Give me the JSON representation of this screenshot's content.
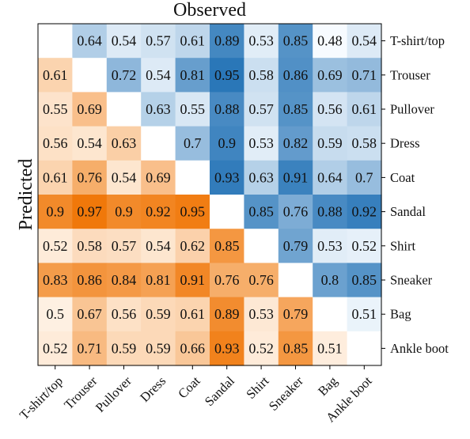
{
  "chart_data": {
    "type": "heatmap",
    "title": "Observed",
    "ylabel": "Predicted",
    "xlabel": "",
    "x_categories": [
      "T-shirt/top",
      "Trouser",
      "Pullover",
      "Dress",
      "Coat",
      "Sandal",
      "Shirt",
      "Sneaker",
      "Bag",
      "Ankle boot"
    ],
    "y_categories": [
      "T-shirt/top",
      "Trouser",
      "Pullover",
      "Dress",
      "Coat",
      "Sandal",
      "Shirt",
      "Sneaker",
      "Bag",
      "Ankle boot"
    ],
    "upper_triangle_colormap": "blues",
    "lower_triangle_colormap": "oranges",
    "values": [
      [
        null,
        "0.64",
        "0.54",
        "0.57",
        "0.61",
        "0.89",
        "0.53",
        "0.85",
        "0.48",
        "0.54"
      ],
      [
        "0.61",
        null,
        "0.72",
        "0.54",
        "0.81",
        "0.95",
        "0.58",
        "0.86",
        "0.69",
        "0.71"
      ],
      [
        "0.55",
        "0.69",
        null,
        "0.63",
        "0.55",
        "0.88",
        "0.57",
        "0.85",
        "0.56",
        "0.61"
      ],
      [
        "0.56",
        "0.54",
        "0.63",
        null,
        "0.7",
        "0.9",
        "0.53",
        "0.82",
        "0.59",
        "0.58"
      ],
      [
        "0.61",
        "0.76",
        "0.54",
        "0.69",
        null,
        "0.93",
        "0.63",
        "0.91",
        "0.64",
        "0.7"
      ],
      [
        "0.9",
        "0.97",
        "0.9",
        "0.92",
        "0.95",
        null,
        "0.85",
        "0.76",
        "0.88",
        "0.92"
      ],
      [
        "0.52",
        "0.58",
        "0.57",
        "0.54",
        "0.62",
        "0.85",
        null,
        "0.79",
        "0.53",
        "0.52"
      ],
      [
        "0.83",
        "0.86",
        "0.84",
        "0.81",
        "0.91",
        "0.76",
        "0.76",
        null,
        "0.8",
        "0.85"
      ],
      [
        "0.5",
        "0.67",
        "0.56",
        "0.59",
        "0.61",
        "0.89",
        "0.53",
        "0.79",
        null,
        "0.51"
      ],
      [
        "0.52",
        "0.71",
        "0.59",
        "0.59",
        "0.66",
        "0.93",
        "0.52",
        "0.85",
        "0.51",
        null
      ]
    ],
    "color_range": [
      0.48,
      0.97
    ],
    "grid": false,
    "colors": {
      "upper_light": "#f7fbff",
      "upper_dark": "#2171b5",
      "lower_light": "#fff5eb",
      "lower_dark": "#f0780a",
      "text": "#111111",
      "axis": "#000000"
    }
  }
}
